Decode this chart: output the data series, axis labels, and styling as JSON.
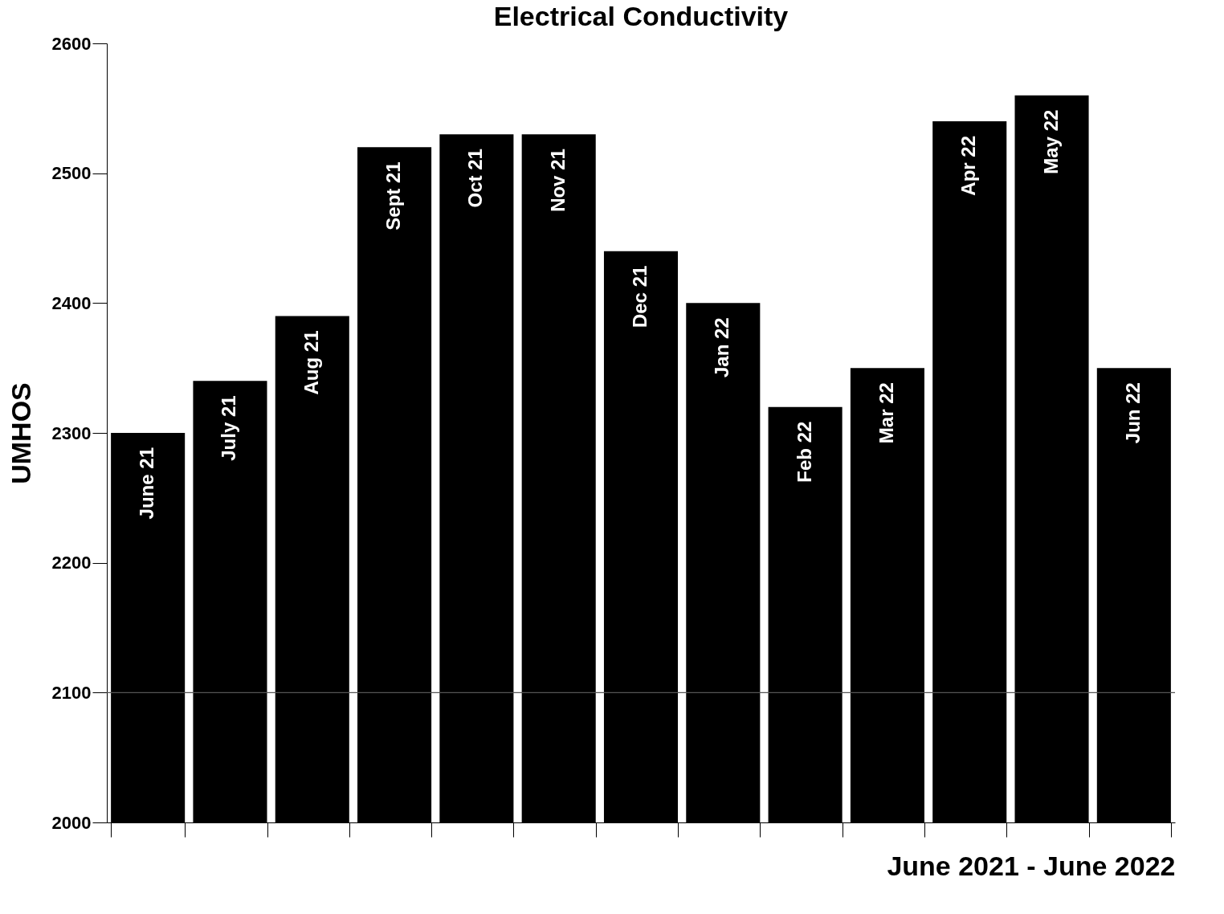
{
  "chart_data": {
    "type": "bar",
    "title": "Electrical Conductivity",
    "xlabel": "June 2021 - June 2022",
    "ylabel": "UMHOS",
    "categories": [
      "June 21",
      "July 21",
      "Aug 21",
      "Sept 21",
      "Oct 21",
      "Nov 21",
      "Dec 21",
      "Jan 22",
      "Feb 22",
      "Mar 22",
      "Apr 22",
      "May 22",
      "Jun 22"
    ],
    "values": [
      2300,
      2340,
      2390,
      2520,
      2530,
      2530,
      2440,
      2400,
      2320,
      2350,
      2540,
      2560,
      2350
    ],
    "color": "#000000",
    "ylim": [
      2000,
      2600
    ],
    "yticks": [
      2000,
      2100,
      2200,
      2300,
      2400,
      2500,
      2600
    ],
    "ref_lines": [
      {
        "axis": "y",
        "value": 2100,
        "color": "#555555"
      }
    ],
    "grid": false,
    "tick_labels": "y"
  }
}
